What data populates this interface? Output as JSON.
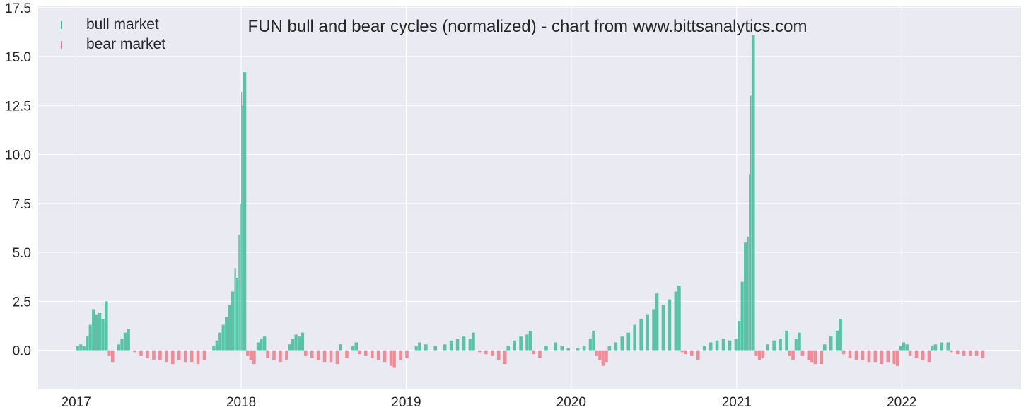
{
  "chart_data": {
    "type": "bar",
    "title": "FUN bull and bear cycles (normalized)  - chart from www.bittsanalytics.com",
    "xlabel": "",
    "ylabel": "",
    "x_range": [
      "2016-10-09",
      "2022-09-22"
    ],
    "ylim": [
      -2.0,
      17.6
    ],
    "x_ticks": [
      {
        "date": "2017-01-01",
        "label": "2017"
      },
      {
        "date": "2018-01-01",
        "label": "2018"
      },
      {
        "date": "2019-01-01",
        "label": "2019"
      },
      {
        "date": "2020-01-01",
        "label": "2020"
      },
      {
        "date": "2021-01-01",
        "label": "2021"
      },
      {
        "date": "2022-01-01",
        "label": "2022"
      }
    ],
    "y_ticks": [
      {
        "value": 0.0,
        "label": "0.0"
      },
      {
        "value": 2.5,
        "label": "2.5"
      },
      {
        "value": 5.0,
        "label": "5.0"
      },
      {
        "value": 7.5,
        "label": "7.5"
      },
      {
        "value": 10.0,
        "label": "10.0"
      },
      {
        "value": 12.5,
        "label": "12.5"
      },
      {
        "value": 15.0,
        "label": "15.0"
      },
      {
        "value": 17.5,
        "label": "17.5"
      }
    ],
    "grid": true,
    "legend_position": "top-left",
    "colors": {
      "bull": "#3dbc9a",
      "bear": "#f47a86",
      "background": "#eaeaf2",
      "grid": "#ffffff"
    },
    "series": [
      {
        "name": "bull market",
        "color": "#3dbc9a",
        "points": [
          [
            "2017-01-01",
            0.2
          ],
          [
            "2017-01-08",
            0.3
          ],
          [
            "2017-01-15",
            0.2
          ],
          [
            "2017-01-22",
            0.7
          ],
          [
            "2017-01-29",
            1.3
          ],
          [
            "2017-02-05",
            2.1
          ],
          [
            "2017-02-12",
            1.8
          ],
          [
            "2017-02-19",
            1.9
          ],
          [
            "2017-02-26",
            1.6
          ],
          [
            "2017-03-05",
            2.5
          ],
          [
            "2017-04-02",
            0.3
          ],
          [
            "2017-04-09",
            0.6
          ],
          [
            "2017-04-16",
            0.9
          ],
          [
            "2017-04-23",
            1.1
          ],
          [
            "2017-10-29",
            0.2
          ],
          [
            "2017-11-05",
            0.5
          ],
          [
            "2017-11-12",
            0.9
          ],
          [
            "2017-11-19",
            1.3
          ],
          [
            "2017-11-26",
            1.7
          ],
          [
            "2017-12-03",
            2.3
          ],
          [
            "2017-12-10",
            3.0
          ],
          [
            "2017-12-17",
            4.2
          ],
          [
            "2017-12-21",
            3.7
          ],
          [
            "2017-12-26",
            5.9
          ],
          [
            "2017-12-29",
            7.5
          ],
          [
            "2018-01-01",
            13.2
          ],
          [
            "2018-01-03",
            12.5
          ],
          [
            "2018-01-05",
            14.2
          ],
          [
            "2018-02-04",
            0.4
          ],
          [
            "2018-02-11",
            0.6
          ],
          [
            "2018-02-18",
            0.7
          ],
          [
            "2018-04-15",
            0.3
          ],
          [
            "2018-04-22",
            0.6
          ],
          [
            "2018-04-29",
            0.8
          ],
          [
            "2018-05-06",
            0.7
          ],
          [
            "2018-05-13",
            0.9
          ],
          [
            "2018-08-05",
            0.3
          ],
          [
            "2018-09-02",
            0.2
          ],
          [
            "2018-09-09",
            0.4
          ],
          [
            "2019-01-20",
            0.2
          ],
          [
            "2019-01-27",
            0.4
          ],
          [
            "2019-02-10",
            0.3
          ],
          [
            "2019-03-03",
            0.2
          ],
          [
            "2019-03-24",
            0.3
          ],
          [
            "2019-04-07",
            0.5
          ],
          [
            "2019-04-21",
            0.6
          ],
          [
            "2019-05-05",
            0.7
          ],
          [
            "2019-05-19",
            0.6
          ],
          [
            "2019-05-26",
            0.9
          ],
          [
            "2019-08-11",
            0.2
          ],
          [
            "2019-08-25",
            0.5
          ],
          [
            "2019-09-08",
            0.7
          ],
          [
            "2019-09-22",
            0.8
          ],
          [
            "2019-09-29",
            1.0
          ],
          [
            "2019-11-03",
            0.2
          ],
          [
            "2019-11-24",
            0.4
          ],
          [
            "2019-12-08",
            0.2
          ],
          [
            "2019-12-22",
            0.1
          ],
          [
            "2020-01-12",
            0.1
          ],
          [
            "2020-01-26",
            0.2
          ],
          [
            "2020-02-09",
            0.6
          ],
          [
            "2020-02-16",
            1.0
          ],
          [
            "2020-03-22",
            0.2
          ],
          [
            "2020-04-05",
            0.4
          ],
          [
            "2020-04-19",
            0.7
          ],
          [
            "2020-05-03",
            0.9
          ],
          [
            "2020-05-17",
            1.3
          ],
          [
            "2020-05-31",
            1.6
          ],
          [
            "2020-06-14",
            1.8
          ],
          [
            "2020-06-28",
            2.1
          ],
          [
            "2020-07-05",
            2.9
          ],
          [
            "2020-07-19",
            2.3
          ],
          [
            "2020-08-02",
            2.6
          ],
          [
            "2020-08-16",
            3.0
          ],
          [
            "2020-08-23",
            3.3
          ],
          [
            "2020-10-18",
            0.2
          ],
          [
            "2020-11-01",
            0.4
          ],
          [
            "2020-11-15",
            0.5
          ],
          [
            "2020-11-29",
            0.6
          ],
          [
            "2020-12-13",
            0.5
          ],
          [
            "2020-12-27",
            0.6
          ],
          [
            "2021-01-03",
            1.5
          ],
          [
            "2021-01-10",
            3.5
          ],
          [
            "2021-01-17",
            5.5
          ],
          [
            "2021-01-24",
            5.8
          ],
          [
            "2021-01-28",
            9.0
          ],
          [
            "2021-01-31",
            13.0
          ],
          [
            "2021-02-03",
            16.1
          ],
          [
            "2021-03-07",
            0.3
          ],
          [
            "2021-03-21",
            0.5
          ],
          [
            "2021-04-04",
            0.6
          ],
          [
            "2021-04-18",
            1.0
          ],
          [
            "2021-05-09",
            0.6
          ],
          [
            "2021-05-16",
            0.9
          ],
          [
            "2021-07-11",
            0.3
          ],
          [
            "2021-07-25",
            0.7
          ],
          [
            "2021-08-08",
            1.0
          ],
          [
            "2021-08-15",
            1.6
          ],
          [
            "2021-12-26",
            0.2
          ],
          [
            "2022-01-02",
            0.4
          ],
          [
            "2022-01-09",
            0.3
          ],
          [
            "2022-03-06",
            0.2
          ],
          [
            "2022-03-13",
            0.3
          ],
          [
            "2022-03-27",
            0.4
          ],
          [
            "2022-04-10",
            0.4
          ]
        ]
      },
      {
        "name": "bear market",
        "color": "#f47a86",
        "points": [
          [
            "2017-03-12",
            -0.3
          ],
          [
            "2017-03-19",
            -0.6
          ],
          [
            "2017-05-07",
            -0.1
          ],
          [
            "2017-05-21",
            -0.3
          ],
          [
            "2017-06-04",
            -0.4
          ],
          [
            "2017-06-18",
            -0.5
          ],
          [
            "2017-07-02",
            -0.5
          ],
          [
            "2017-07-16",
            -0.6
          ],
          [
            "2017-07-30",
            -0.7
          ],
          [
            "2017-08-13",
            -0.5
          ],
          [
            "2017-08-27",
            -0.6
          ],
          [
            "2017-09-10",
            -0.6
          ],
          [
            "2017-09-24",
            -0.7
          ],
          [
            "2017-10-08",
            -0.5
          ],
          [
            "2018-01-12",
            -0.3
          ],
          [
            "2018-01-19",
            -0.5
          ],
          [
            "2018-01-26",
            -0.7
          ],
          [
            "2018-02-25",
            -0.4
          ],
          [
            "2018-03-11",
            -0.5
          ],
          [
            "2018-03-25",
            -0.6
          ],
          [
            "2018-04-08",
            -0.5
          ],
          [
            "2018-05-20",
            -0.3
          ],
          [
            "2018-06-03",
            -0.4
          ],
          [
            "2018-06-17",
            -0.5
          ],
          [
            "2018-07-01",
            -0.6
          ],
          [
            "2018-07-15",
            -0.6
          ],
          [
            "2018-07-29",
            -0.7
          ],
          [
            "2018-08-19",
            -0.4
          ],
          [
            "2018-09-16",
            -0.2
          ],
          [
            "2018-09-30",
            -0.3
          ],
          [
            "2018-10-14",
            -0.4
          ],
          [
            "2018-10-28",
            -0.5
          ],
          [
            "2018-11-11",
            -0.6
          ],
          [
            "2018-11-25",
            -0.8
          ],
          [
            "2018-12-02",
            -0.9
          ],
          [
            "2018-12-16",
            -0.5
          ],
          [
            "2018-12-30",
            -0.4
          ],
          [
            "2019-06-09",
            -0.1
          ],
          [
            "2019-06-23",
            -0.2
          ],
          [
            "2019-07-07",
            -0.3
          ],
          [
            "2019-07-21",
            -0.5
          ],
          [
            "2019-08-04",
            -0.7
          ],
          [
            "2019-10-06",
            -0.2
          ],
          [
            "2019-10-20",
            -0.4
          ],
          [
            "2020-02-23",
            -0.3
          ],
          [
            "2020-03-01",
            -0.5
          ],
          [
            "2020-03-08",
            -0.8
          ],
          [
            "2020-03-15",
            -0.6
          ],
          [
            "2020-08-30",
            -0.1
          ],
          [
            "2020-09-06",
            -0.2
          ],
          [
            "2020-09-20",
            -0.3
          ],
          [
            "2020-10-04",
            -0.5
          ],
          [
            "2021-02-10",
            -0.3
          ],
          [
            "2021-02-17",
            -0.5
          ],
          [
            "2021-02-24",
            -0.4
          ],
          [
            "2021-04-25",
            -0.3
          ],
          [
            "2021-05-02",
            -0.5
          ],
          [
            "2021-05-23",
            -0.3
          ],
          [
            "2021-06-06",
            -0.5
          ],
          [
            "2021-06-13",
            -0.6
          ],
          [
            "2021-06-20",
            -0.7
          ],
          [
            "2021-07-04",
            -0.7
          ],
          [
            "2021-08-22",
            -0.2
          ],
          [
            "2021-09-05",
            -0.4
          ],
          [
            "2021-09-19",
            -0.5
          ],
          [
            "2021-10-03",
            -0.5
          ],
          [
            "2021-10-17",
            -0.6
          ],
          [
            "2021-10-31",
            -0.6
          ],
          [
            "2021-11-14",
            -0.7
          ],
          [
            "2021-11-28",
            -0.6
          ],
          [
            "2021-12-12",
            -0.7
          ],
          [
            "2021-12-19",
            -0.8
          ],
          [
            "2022-01-16",
            -0.3
          ],
          [
            "2022-01-30",
            -0.4
          ],
          [
            "2022-02-13",
            -0.5
          ],
          [
            "2022-02-27",
            -0.6
          ],
          [
            "2022-04-17",
            -0.1
          ],
          [
            "2022-05-01",
            -0.2
          ],
          [
            "2022-05-15",
            -0.3
          ],
          [
            "2022-05-29",
            -0.3
          ],
          [
            "2022-06-12",
            -0.3
          ],
          [
            "2022-06-26",
            -0.4
          ]
        ]
      }
    ]
  }
}
